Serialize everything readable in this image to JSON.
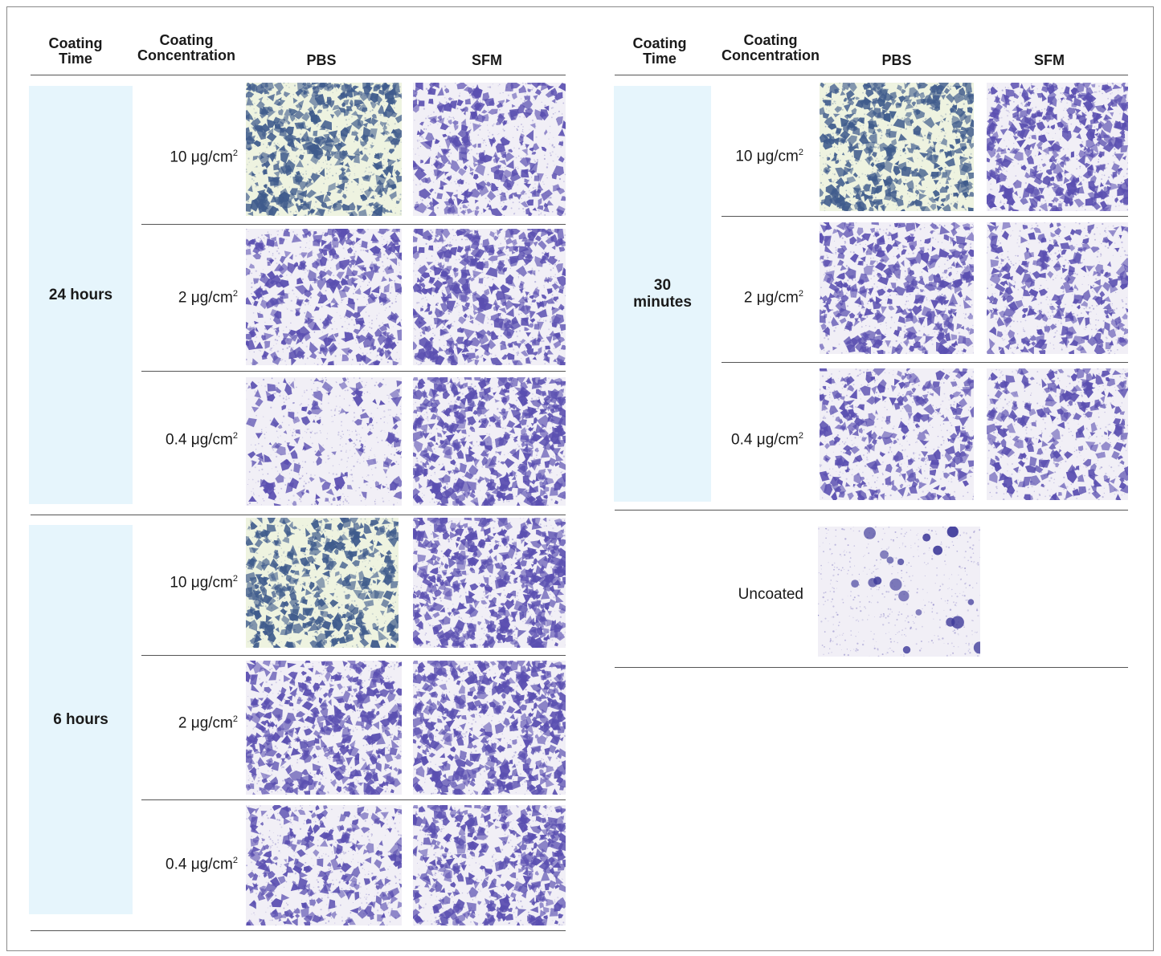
{
  "headers": {
    "coating_time": [
      "Coating",
      "Time"
    ],
    "coating_concentration": [
      "Coating",
      "Concentration"
    ],
    "pbs": "PBS",
    "sfm": "SFM"
  },
  "concentration_unit": "μg/cm",
  "concentration_unit_superscript": "2",
  "groups": [
    {
      "time": [
        "24 hours"
      ],
      "concentrations": [
        "10",
        "2",
        "0.4"
      ]
    },
    {
      "time": [
        "6 hours"
      ],
      "concentrations": [
        "10",
        "2",
        "0.4"
      ]
    },
    {
      "time": [
        "30",
        "minutes"
      ],
      "concentrations": [
        "10",
        "2",
        "0.4"
      ]
    }
  ],
  "uncoated_label": "Uncoated",
  "colors": {
    "band": "#e6f5fc",
    "stain_pbs_24h_10": "#3f5b8c",
    "stain_purple": "#5a4fb0",
    "background_pbs_green": "#eef3e0"
  },
  "micrograph_density": {
    "g0_pbs": [
      0.75,
      0.55,
      0.25
    ],
    "g0_sfm": [
      0.5,
      0.7,
      0.85
    ],
    "g1_pbs": [
      0.7,
      0.75,
      0.5
    ],
    "g1_sfm": [
      0.9,
      0.85,
      0.75
    ],
    "g2_pbs": [
      0.7,
      0.65,
      0.5
    ],
    "g2_sfm": [
      0.75,
      0.5,
      0.45
    ],
    "uncoated": 0.15
  }
}
